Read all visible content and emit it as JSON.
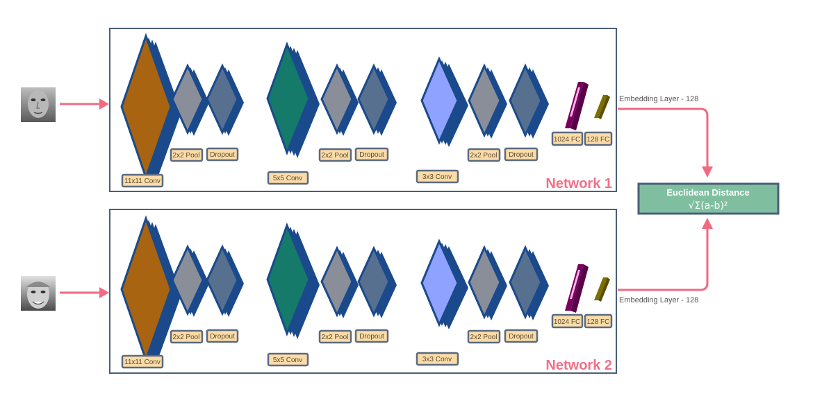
{
  "networks": [
    {
      "title": "Network 1",
      "embedding_label": "Embedding Layer - 128",
      "labels": {
        "conv1": "11x11 Conv",
        "pool1": "2x2 Pool",
        "drop1": "Dropout",
        "conv2": "5x5 Conv",
        "pool2": "2x2 Pool",
        "drop2": "Dropout",
        "conv3": "3x3 Conv",
        "pool3": "2x2 Pool",
        "drop3": "Dropout",
        "fc1": "1024 FC",
        "fc2": "128 FC"
      }
    },
    {
      "title": "Network 2",
      "embedding_label": "Embedding Layer - 128",
      "labels": {
        "conv1": "11x11 Conv",
        "pool1": "2x2 Pool",
        "drop1": "Dropout",
        "conv2": "5x5 Conv",
        "pool2": "2x2 Pool",
        "drop2": "Dropout",
        "conv3": "3x3 Conv",
        "pool3": "2x2 Pool",
        "drop3": "Dropout",
        "fc1": "1024 FC",
        "fc2": "128 FC"
      }
    }
  ],
  "distance": {
    "title": "Euclidean Distance",
    "formula": "√Σ(a-b)²"
  },
  "colors": {
    "frame": "#4a5f78",
    "arrow": "#f06a82",
    "conv1": "#a86410",
    "conv2": "#157a6a",
    "conv3": "#8fa2ff",
    "pool": "#8a8e99",
    "dropout": "#58708f",
    "edge": "#1a4a8c",
    "label_bg": "#fbdca8",
    "label_border": "#5a6a80",
    "fc1024": "#7a0060",
    "fc128": "#7c6f00",
    "distance_bg": "#7fbf9f"
  }
}
